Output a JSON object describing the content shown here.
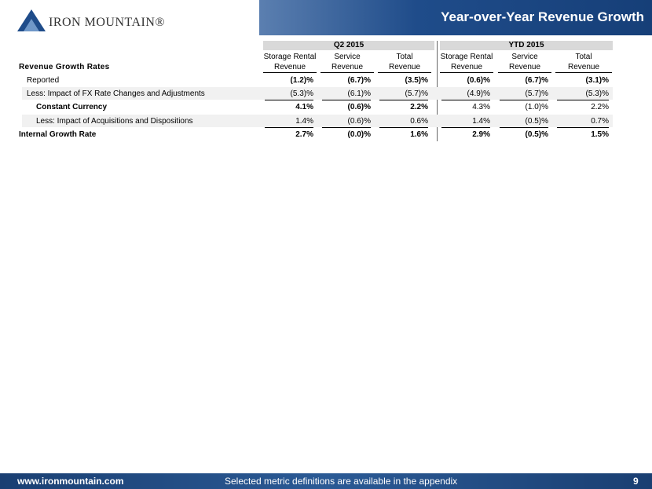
{
  "header": {
    "logo": "IRON MOUNTAIN®",
    "title": "Year-over-Year Revenue Growth"
  },
  "table": {
    "row_header": "Revenue Growth Rates",
    "groups": [
      "Q2 2015",
      "YTD 2015"
    ],
    "columns": [
      [
        "Storage Rental",
        "Revenue"
      ],
      [
        "Service",
        "Revenue"
      ],
      [
        "Total",
        "Revenue"
      ],
      [
        "Storage Rental",
        "Revenue"
      ],
      [
        "Service",
        "Revenue"
      ],
      [
        "Total",
        "Revenue"
      ]
    ],
    "rows": [
      [
        "Reported",
        "(1.2)%",
        "(6.7)%",
        "(3.5)%",
        "(0.6)%",
        "(6.7)%",
        "(3.1)%"
      ],
      [
        "Less: Impact of FX Rate Changes and Adjustments",
        "(5.3)%",
        "(6.1)%",
        "(5.7)%",
        "(4.9)%",
        "(5.7)%",
        "(5.3)%"
      ],
      [
        "Constant Currency",
        "4.1%",
        "(0.6)%",
        "2.2%",
        "4.3%",
        "(1.0)%",
        "2.2%"
      ],
      [
        "Less: Impact of Acquisitions and Dispositions",
        "1.4%",
        "(0.6)%",
        "0.6%",
        "1.4%",
        "(0.5)%",
        "0.7%"
      ],
      [
        "Internal Growth Rate",
        "2.7%",
        "(0.0)%",
        "1.6%",
        "2.9%",
        "(0.5)%",
        "1.5%"
      ]
    ]
  },
  "footer": {
    "url": "www.ironmountain.com",
    "note": "Selected metric definitions are available in the appendix",
    "page": "9"
  }
}
